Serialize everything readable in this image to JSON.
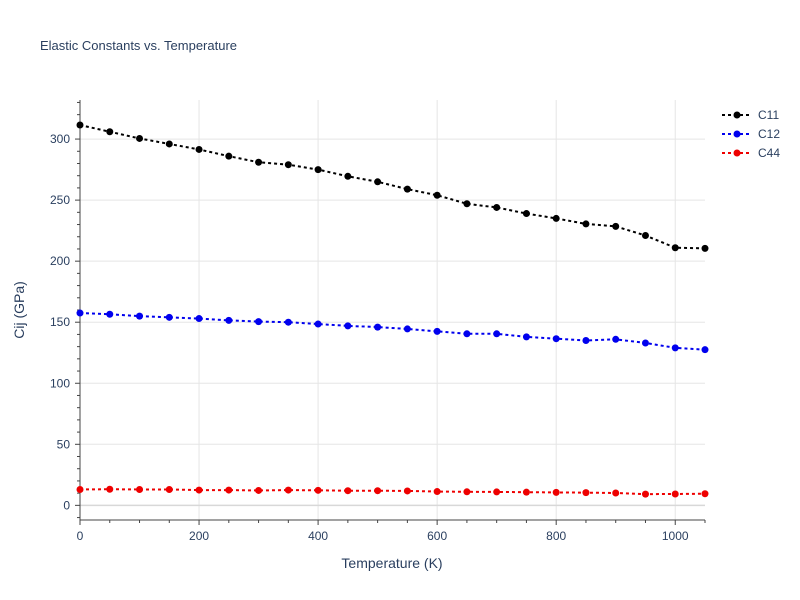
{
  "chart_data": {
    "type": "line",
    "title": "Elastic Constants vs. Temperature",
    "xlabel": "Temperature (K)",
    "ylabel": "Cij (GPa)",
    "xlim": [
      0,
      1050
    ],
    "ylim": [
      -12,
      332
    ],
    "xticks": [
      0,
      200,
      400,
      600,
      800,
      1000
    ],
    "yticks": [
      0,
      50,
      100,
      150,
      200,
      250,
      300
    ],
    "grid": true,
    "legend_position": "top-right",
    "x": [
      0,
      50,
      100,
      150,
      200,
      250,
      300,
      350,
      400,
      450,
      500,
      550,
      600,
      650,
      700,
      750,
      800,
      850,
      900,
      950,
      1000,
      1050
    ],
    "series": [
      {
        "name": "C11",
        "color": "#000000",
        "values": [
          311.5,
          306,
          300.5,
          296,
          291.5,
          286,
          281,
          279,
          275,
          269.5,
          265,
          259,
          254,
          247,
          244,
          239,
          235,
          230.5,
          228.5,
          221,
          211,
          210.5
        ]
      },
      {
        "name": "C12",
        "color": "#0000ee",
        "values": [
          157.5,
          156.5,
          155,
          154,
          153,
          151.5,
          150.5,
          150,
          148.5,
          147,
          146,
          144.5,
          142.5,
          140.5,
          140.5,
          138,
          136.5,
          135,
          136,
          133,
          129,
          127.5
        ]
      },
      {
        "name": "C44",
        "color": "#ee0000",
        "values": [
          13,
          13.2,
          13,
          13,
          12.5,
          12.5,
          12.2,
          12.5,
          12.3,
          12,
          12,
          11.8,
          11.3,
          11.1,
          11,
          10.8,
          10.6,
          10.4,
          10.1,
          9.2,
          9.3,
          9.5
        ]
      }
    ]
  }
}
